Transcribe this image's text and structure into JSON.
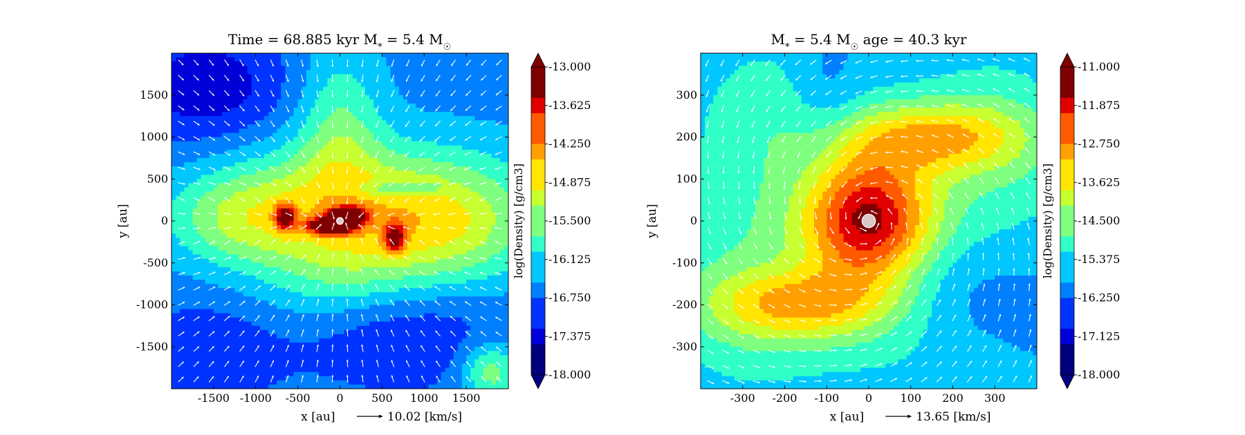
{
  "colormap": [
    "#00007f",
    "#0000d9",
    "#0033ff",
    "#0080ff",
    "#00c8ff",
    "#30ffc8",
    "#7fff7f",
    "#c8ff30",
    "#ffe500",
    "#ffa000",
    "#ff5a00",
    "#e00000",
    "#7f0000"
  ],
  "arrow_color": "#ffffff",
  "chart_data": [
    {
      "type": "heatmap",
      "title": "Time = 68.885 kyr    M$_*$ = 5.4 M$_\\odot$",
      "title_parts": {
        "left": "Time = 68.885 kyr",
        "mass_prefix": "M",
        "mass_sub": "*",
        "mass_value": " = 5.4 M",
        "mass_unit_sub": "☉"
      },
      "xlabel": "x [au]",
      "ylabel": "y [au]",
      "xlim": [
        -2000,
        2000
      ],
      "ylim": [
        -2000,
        2000
      ],
      "xticks": [
        -1500,
        -1000,
        -500,
        0,
        500,
        1000,
        1500
      ],
      "yticks": [
        -1500,
        -1000,
        -500,
        0,
        500,
        1000,
        1500
      ],
      "xtick_labels": [
        "-1500",
        "-1000",
        "-500",
        "0",
        "500",
        "1000",
        "1500"
      ],
      "ytick_labels": [
        "-1500",
        "-1000",
        "-500",
        "0",
        "500",
        "1000",
        "1500"
      ],
      "colorbar": {
        "label": "log(Density) [g/cm3]",
        "range": [
          -18.0,
          -13.0
        ],
        "ticks": [
          -13.0,
          -13.625,
          -14.25,
          -14.875,
          -15.5,
          -16.125,
          -16.75,
          -17.375,
          -18.0
        ],
        "tick_labels": [
          "-13.000",
          "-13.625",
          "-14.250",
          "-14.875",
          "-15.500",
          "-16.125",
          "-16.750",
          "-17.375",
          "-18.000"
        ]
      },
      "velocity_key": {
        "label": "10.02 [km/s]",
        "value": 10.02
      },
      "field": {
        "background": -16.6,
        "features": [
          {
            "x": -1600,
            "y": 1600,
            "sx": 700,
            "sy": 500,
            "amp": -0.9
          },
          {
            "x": -1600,
            "y": -1600,
            "sx": 600,
            "sy": 450,
            "amp": -0.6
          },
          {
            "x": 700,
            "y": -1300,
            "sx": 900,
            "sy": 500,
            "amp": -0.7
          },
          {
            "x": 0,
            "y": 1100,
            "sx": 350,
            "sy": 700,
            "amp": 0.9
          },
          {
            "x": -350,
            "y": 250,
            "sx": 900,
            "sy": 500,
            "amp": 1.1
          },
          {
            "x": 1200,
            "y": 0,
            "sx": 800,
            "sy": 550,
            "amp": 1.7
          },
          {
            "x": -1200,
            "y": 0,
            "sx": 600,
            "sy": 380,
            "amp": 0.9
          },
          {
            "x": 0,
            "y": -650,
            "sx": 700,
            "sy": 450,
            "amp": 0.8
          },
          {
            "x": 1800,
            "y": -1800,
            "sx": 250,
            "sy": 250,
            "amp": 1.2
          },
          {
            "x": -650,
            "y": 40,
            "sx": 90,
            "sy": 110,
            "amp": 2.0
          },
          {
            "x": 650,
            "y": -200,
            "sx": 90,
            "sy": 130,
            "amp": 1.8
          },
          {
            "x": -100,
            "y": -60,
            "sx": 180,
            "sy": 70,
            "amp": 3.2
          },
          {
            "x": 100,
            "y": 60,
            "sx": 150,
            "sy": 70,
            "amp": 3.0
          },
          {
            "x": 0,
            "y": 0,
            "sx": 60,
            "sy": 60,
            "amp": 1.6
          },
          {
            "x": 700,
            "y": 380,
            "sx": 350,
            "sy": 60,
            "amp": -0.8
          }
        ],
        "star": {
          "x": 0,
          "y": 0,
          "r": 40
        }
      }
    },
    {
      "type": "heatmap",
      "title": "M$_*$ = 5.4 M$_\\odot$        age = 40.3 kyr",
      "title_parts": {
        "mass_prefix": "M",
        "mass_sub": "*",
        "mass_value": " = 5.4 M",
        "mass_unit_sub": "☉",
        "right": "age = 40.3 kyr"
      },
      "xlabel": "x [au]",
      "ylabel": "y [au]",
      "xlim": [
        -400,
        400
      ],
      "ylim": [
        -400,
        400
      ],
      "xticks": [
        -300,
        -200,
        -100,
        0,
        100,
        200,
        300
      ],
      "yticks": [
        -300,
        -200,
        -100,
        0,
        100,
        200,
        300
      ],
      "xtick_labels": [
        "-300",
        "-200",
        "-100",
        "0",
        "100",
        "200",
        "300"
      ],
      "ytick_labels": [
        "-300",
        "-200",
        "-100",
        "0",
        "100",
        "200",
        "300"
      ],
      "colorbar": {
        "label": "log(Density) [g/cm3]",
        "range": [
          -18.0,
          -11.0
        ],
        "ticks": [
          -11.0,
          -11.875,
          -12.75,
          -13.625,
          -14.5,
          -15.375,
          -16.25,
          -17.125,
          -18.0
        ],
        "tick_labels": [
          "-11.000",
          "-11.875",
          "-12.750",
          "-13.625",
          "-14.500",
          "-15.375",
          "-16.250",
          "-17.125",
          "-18.000"
        ]
      },
      "velocity_key": {
        "label": "13.65 [km/s]",
        "value": 13.65
      },
      "field": {
        "background": -15.9,
        "features": [
          {
            "x": 0,
            "y": 0,
            "sx": 110,
            "sy": 110,
            "amp": 4.3
          },
          {
            "x": 150,
            "y": 200,
            "sx": 160,
            "sy": 60,
            "amp": 2.2
          },
          {
            "x": -150,
            "y": -200,
            "sx": 160,
            "sy": 60,
            "amp": 2.2
          },
          {
            "x": 300,
            "y": 150,
            "sx": 150,
            "sy": 200,
            "amp": 1.0
          },
          {
            "x": -300,
            "y": -150,
            "sx": 150,
            "sy": 200,
            "amp": 1.0
          },
          {
            "x": -220,
            "y": 260,
            "sx": 160,
            "sy": 160,
            "amp": 0.8
          },
          {
            "x": 100,
            "y": -320,
            "sx": 200,
            "sy": 80,
            "amp": 0.6
          },
          {
            "x": -100,
            "y": 300,
            "sx": 60,
            "sy": 120,
            "amp": -0.6
          },
          {
            "x": 250,
            "y": -200,
            "sx": 160,
            "sy": 120,
            "amp": -0.5
          }
        ],
        "star": {
          "x": 0,
          "y": 0,
          "r": 16
        }
      }
    }
  ]
}
